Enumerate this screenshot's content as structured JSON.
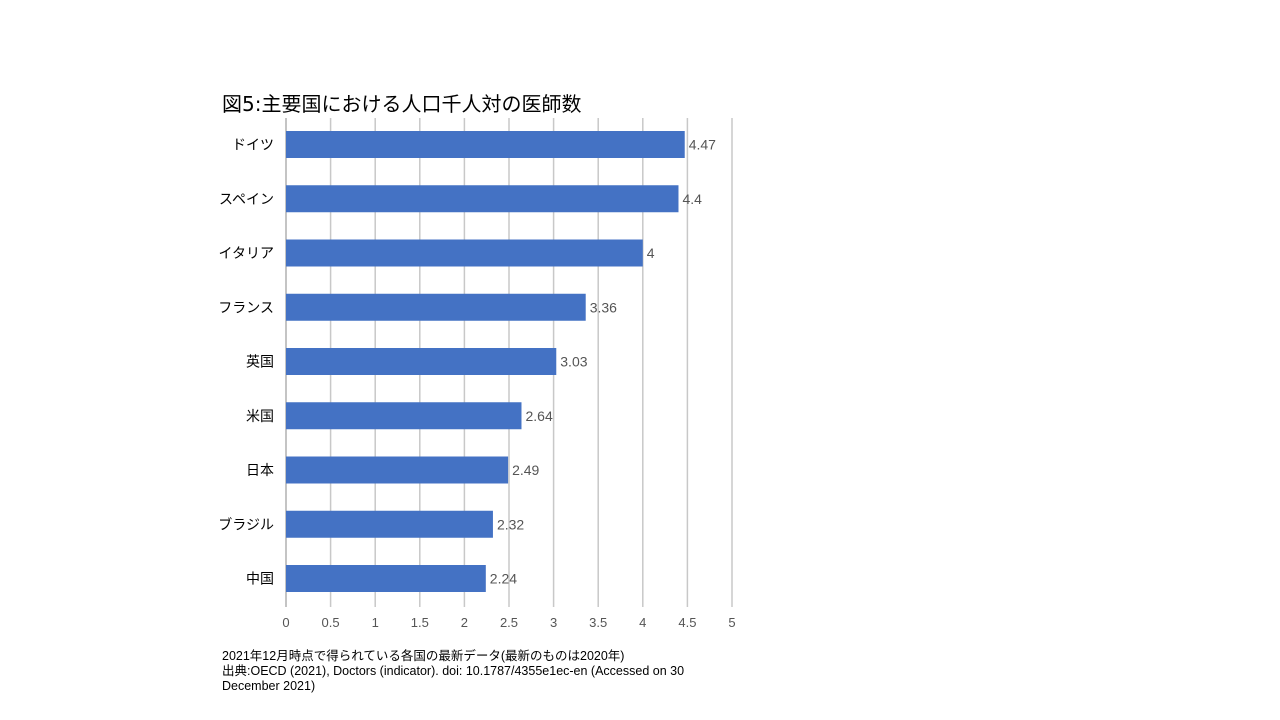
{
  "chart_data": {
    "type": "bar",
    "orientation": "horizontal",
    "title": "図5:主要国における人口千人対の医師数",
    "categories": [
      "ドイツ",
      "スペイン",
      "イタリア",
      "フランス",
      "英国",
      "米国",
      "日本",
      "ブラジル",
      "中国"
    ],
    "values": [
      4.47,
      4.4,
      4,
      3.36,
      3.03,
      2.64,
      2.49,
      2.32,
      2.24
    ],
    "value_labels": [
      "4.47",
      "4.4",
      "4",
      "3.36",
      "3.03",
      "2.64",
      "2.49",
      "2.32",
      "2.24"
    ],
    "xlim": [
      0,
      5
    ],
    "x_ticks": [
      "0",
      "0.5",
      "1",
      "1.5",
      "2",
      "2.5",
      "3",
      "3.5",
      "4",
      "4.5",
      "5"
    ],
    "xlabel": "",
    "ylabel": "",
    "grid": "vertical",
    "legend": "none",
    "bar_color": "#4472c4"
  },
  "notes": {
    "line1": "2021年12月時点で得られている各国の最新データ(最新のものは2020年)",
    "line2": "出典:OECD (2021), Doctors (indicator). doi: 10.1787/4355e1ec-en (Accessed on 30",
    "line3": "December 2021)"
  }
}
